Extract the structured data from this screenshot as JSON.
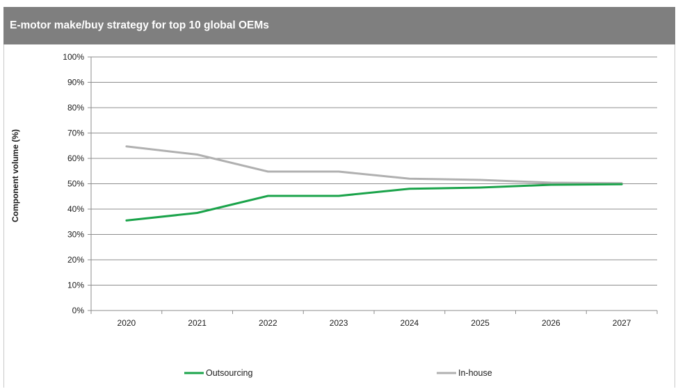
{
  "header": {
    "title": "E-motor make/buy strategy for top 10 global OEMs"
  },
  "chart_data": {
    "type": "line",
    "title": "E-motor make/buy strategy for top 10 global OEMs",
    "xlabel": "",
    "ylabel": "Component volume (%)",
    "categories": [
      "2020",
      "2021",
      "2022",
      "2023",
      "2024",
      "2025",
      "2026",
      "2027"
    ],
    "ylim": [
      0,
      100
    ],
    "yticks": [
      0,
      10,
      20,
      30,
      40,
      50,
      60,
      70,
      80,
      90,
      100
    ],
    "ytick_labels": [
      "0%",
      "10%",
      "20%",
      "30%",
      "40%",
      "50%",
      "60%",
      "70%",
      "80%",
      "90%",
      "100%"
    ],
    "grid": true,
    "legend": "bottom",
    "series": [
      {
        "name": "Outsourcing",
        "color": "#1aa34a",
        "values": [
          35.5,
          38.5,
          45.2,
          45.2,
          48.0,
          48.5,
          49.6,
          49.8
        ]
      },
      {
        "name": "In-house",
        "color": "#b0b0b0",
        "values": [
          64.7,
          61.5,
          54.8,
          54.8,
          52.0,
          51.5,
          50.4,
          50.2
        ]
      }
    ]
  }
}
